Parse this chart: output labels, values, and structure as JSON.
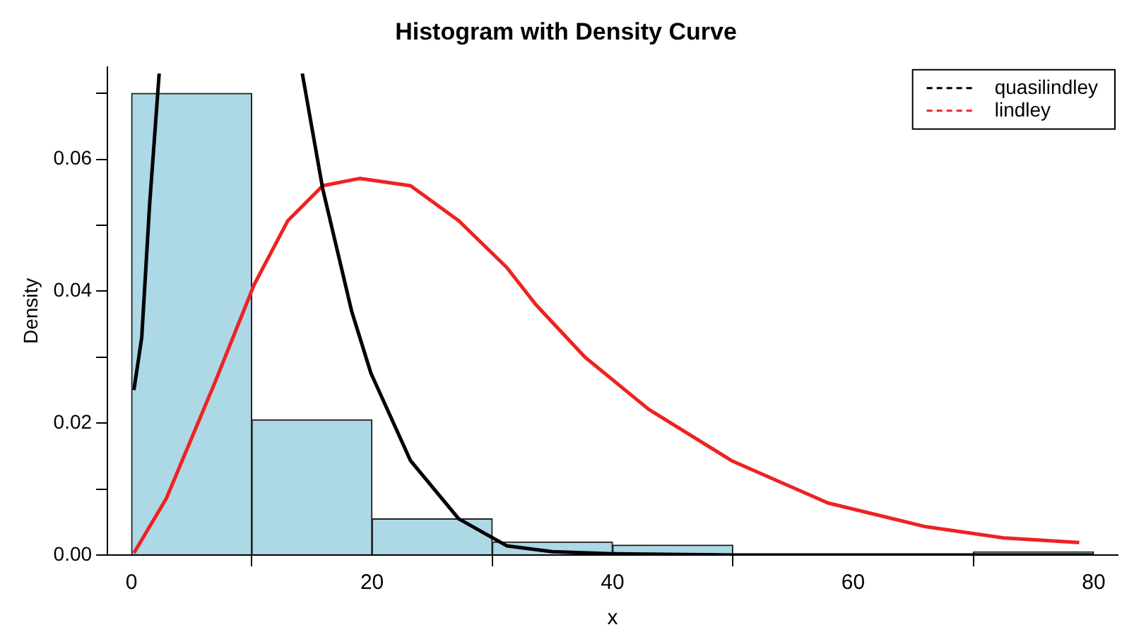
{
  "chart_data": {
    "type": "histogram",
    "title": "Histogram with Density Curve",
    "xlabel": "x",
    "ylabel": "Density",
    "bins": [
      0,
      10,
      20,
      30,
      40,
      50,
      60,
      70,
      80
    ],
    "values": [
      0.07,
      0.0205,
      0.0055,
      0.002,
      0.0015,
      0,
      0,
      0.0005
    ],
    "color": "#add8e6",
    "xlim": [
      -2,
      82
    ],
    "xticks": [
      0,
      20,
      40,
      60,
      80
    ],
    "ylim": [
      0,
      0.074
    ],
    "yticks": [
      {
        "value": 0,
        "label": "0.00"
      },
      {
        "value": 0.01,
        "label": null
      },
      0.02,
      {
        "value": 0.03,
        "label": null
      },
      0.04,
      {
        "value": 0.05,
        "label": null
      },
      0.06,
      {
        "value": 0.07,
        "label": null
      }
    ],
    "grid": false,
    "legend": "top right",
    "marker": "none",
    "series": [
      {
        "name": "quasilindley",
        "type": "line",
        "color": "#000000",
        "x": [
          0.2,
          0.85,
          1.5,
          2.3,
          null,
          14.2,
          15.9,
          18.3,
          19.9,
          23.2,
          27.2,
          31.2,
          35,
          40,
          50,
          60,
          70,
          80
        ],
        "values": [
          0.025,
          0.033,
          0.053,
          0.073,
          null,
          0.073,
          0.0555,
          0.037,
          0.0276,
          0.0143,
          0.0055,
          0.0014,
          0.0005,
          0.0002,
          0,
          0,
          0,
          0
        ]
      },
      {
        "name": "lindley",
        "type": "line",
        "color": "#ee2222",
        "x": [
          0.2,
          2.9,
          6.9,
          10.2,
          13,
          15.9,
          19,
          23.2,
          27.2,
          31.2,
          33.6,
          37.7,
          43,
          49.9,
          57.9,
          66,
          72.5,
          78.8
        ],
        "values": [
          0.0003,
          0.0086,
          0.026,
          0.041,
          0.0507,
          0.056,
          0.0571,
          0.056,
          0.0507,
          0.0436,
          0.038,
          0.03,
          0.0221,
          0.0143,
          0.0079,
          0.0043,
          0.0026,
          0.0019
        ]
      }
    ]
  }
}
